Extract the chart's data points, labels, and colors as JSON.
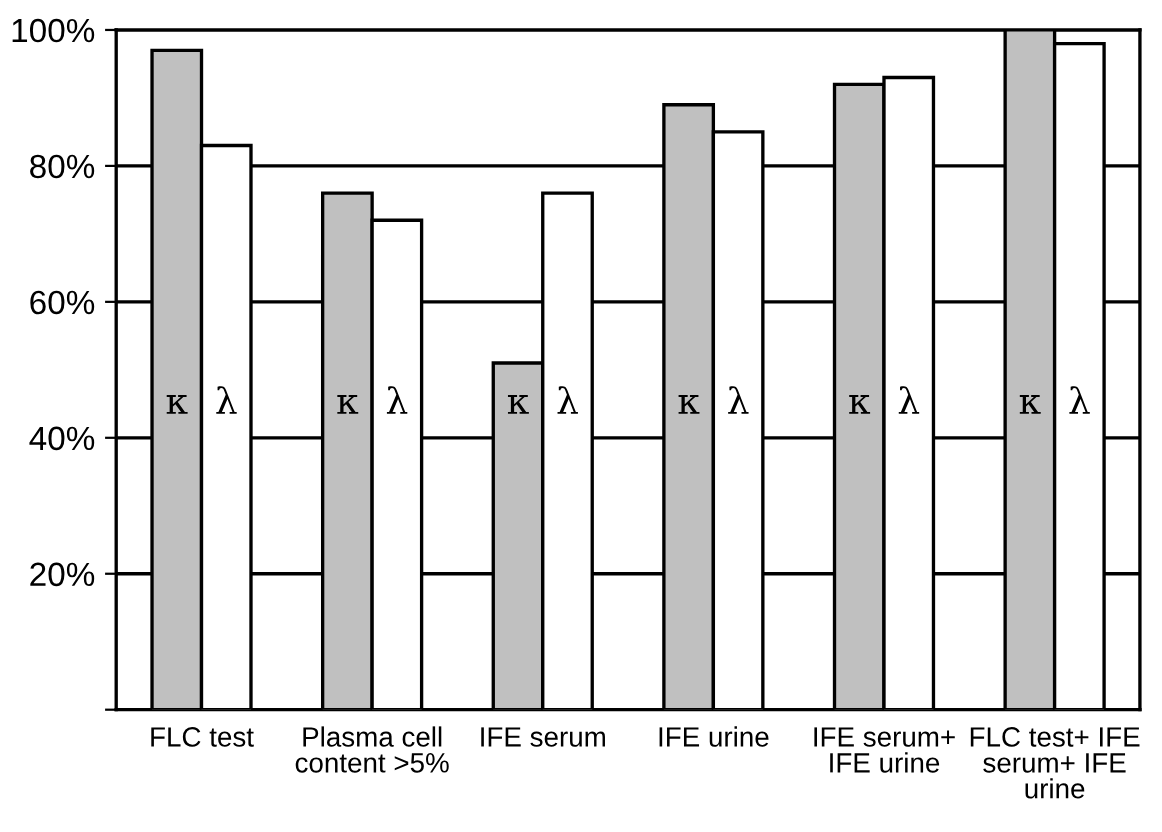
{
  "chart_data": {
    "type": "bar",
    "categories": [
      "FLC test",
      "Plasma cell\ncontent >5%",
      "IFE serum",
      "IFE urine",
      "IFE serum+\nIFE urine",
      "FLC test+ IFE\nserum+ IFE\nurine"
    ],
    "series": [
      {
        "name": "κ",
        "color": "#c0c0c0",
        "values": [
          97,
          76,
          51,
          89,
          92,
          100
        ]
      },
      {
        "name": "λ",
        "color": "#ffffff",
        "values": [
          83,
          72,
          76,
          85,
          93,
          98
        ]
      }
    ],
    "ylim": [
      0,
      100
    ],
    "yticks": [
      {
        "value": 0,
        "label": null
      },
      {
        "value": 20,
        "label": "20%"
      },
      {
        "value": 40,
        "label": "40%"
      },
      {
        "value": 60,
        "label": "60%"
      },
      {
        "value": 80,
        "label": "80%"
      },
      {
        "value": 100,
        "label": "100%"
      }
    ],
    "grid": "y",
    "legend": false
  }
}
